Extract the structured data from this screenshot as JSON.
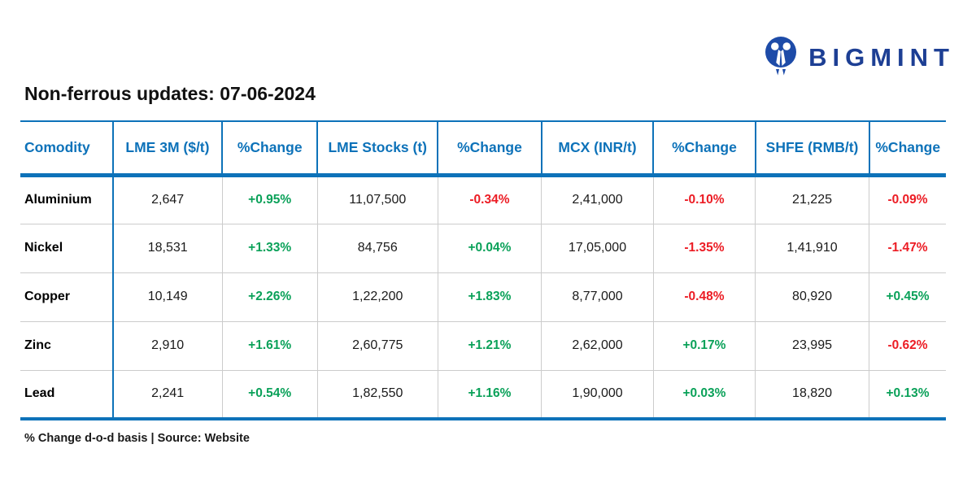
{
  "brand": {
    "name": "BIGMINT",
    "logo_icon": "bigmint-people-m-icon"
  },
  "page": {
    "title": "Non-ferrous updates: 07-06-2024",
    "footnote": "% Change d-o-d basis | Source: Website"
  },
  "colors": {
    "header_blue": "#0d72b9",
    "logo_navy": "#1d3f94",
    "positive_green": "#0aa159",
    "negative_red": "#ec1c24",
    "divider_gray": "#cccccc"
  },
  "table": {
    "columns": [
      "Comodity",
      "LME 3M ($/t)",
      "%Change",
      "LME Stocks (t)",
      "%Change",
      "MCX (INR/t)",
      "%Change",
      "SHFE (RMB/t)",
      "%Change"
    ],
    "rows": [
      {
        "commodity": "Aluminium",
        "lme_3m": "2,647",
        "lme_3m_change": "+0.95%",
        "lme_stocks": "11,07,500",
        "lme_stocks_change": "-0.34%",
        "mcx": "2,41,000",
        "mcx_change": "-0.10%",
        "shfe": "21,225",
        "shfe_change": "-0.09%"
      },
      {
        "commodity": "Nickel",
        "lme_3m": "18,531",
        "lme_3m_change": "+1.33%",
        "lme_stocks": "84,756",
        "lme_stocks_change": "+0.04%",
        "mcx": "17,05,000",
        "mcx_change": "-1.35%",
        "shfe": "1,41,910",
        "shfe_change": "-1.47%"
      },
      {
        "commodity": "Copper",
        "lme_3m": "10,149",
        "lme_3m_change": "+2.26%",
        "lme_stocks": "1,22,200",
        "lme_stocks_change": "+1.83%",
        "mcx": "8,77,000",
        "mcx_change": "-0.48%",
        "shfe": "80,920",
        "shfe_change": "+0.45%"
      },
      {
        "commodity": "Zinc",
        "lme_3m": "2,910",
        "lme_3m_change": "+1.61%",
        "lme_stocks": "2,60,775",
        "lme_stocks_change": "+1.21%",
        "mcx": "2,62,000",
        "mcx_change": "+0.17%",
        "shfe": "23,995",
        "shfe_change": "-0.62%"
      },
      {
        "commodity": "Lead",
        "lme_3m": "2,241",
        "lme_3m_change": "+0.54%",
        "lme_stocks": "1,82,550",
        "lme_stocks_change": "+1.16%",
        "mcx": "1,90,000",
        "mcx_change": "+0.03%",
        "shfe": "18,820",
        "shfe_change": "+0.13%"
      }
    ]
  }
}
